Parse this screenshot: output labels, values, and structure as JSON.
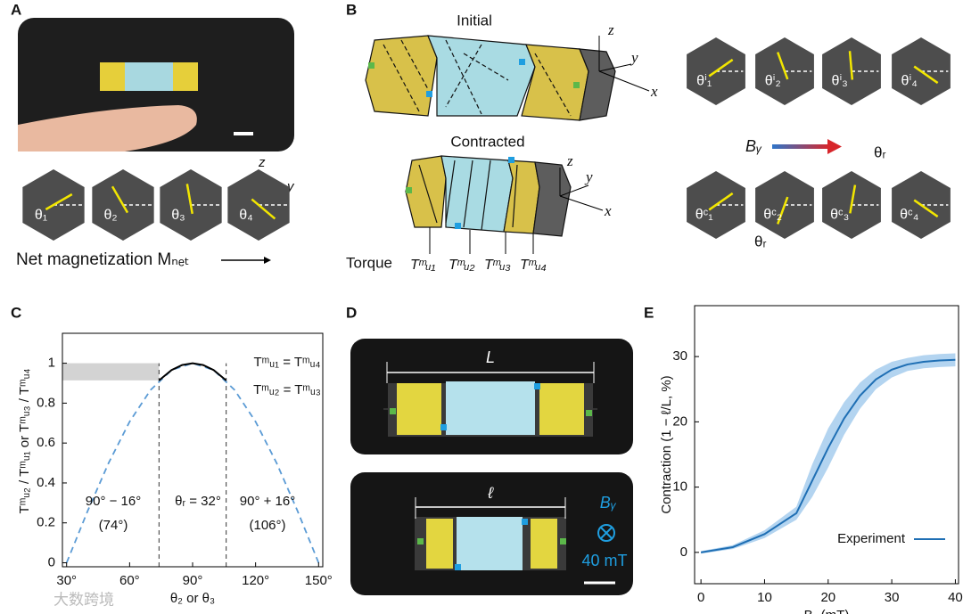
{
  "panel_labels": [
    "A",
    "B",
    "C",
    "D",
    "E"
  ],
  "panel_a": {
    "hexagon_labels": [
      "θ₁",
      "θ₂",
      "θ₃",
      "θ₄"
    ],
    "axis_labels": [
      "z",
      "y"
    ],
    "caption": "Net magnetization Mₙₑₜ"
  },
  "panel_b": {
    "initial_title": "Initial",
    "contracted_title": "Contracted",
    "axis_labels": [
      "z",
      "y",
      "x"
    ],
    "torque_label": "Torque",
    "torque_units": [
      "Tᵐᵤ₁",
      "Tᵐᵤ₂",
      "Tᵐᵤ₃",
      "Tᵐᵤ₄"
    ],
    "initial_angles": [
      "θⁱ₁",
      "θⁱ₂",
      "θⁱ₃",
      "θⁱ₄"
    ],
    "contracted_angles": [
      "θᶜ₁",
      "θᶜ₂",
      "θᶜ₃",
      "θᶜ₄"
    ],
    "field_label": "Bᵧ",
    "rotation_label": "θᵣ"
  },
  "panel_d": {
    "length_label": "L",
    "contracted_length_label": "ℓ",
    "field_label": "Bᵧ",
    "field_strength": "40 mT"
  },
  "watermark": "大数跨境",
  "chart_data": [
    {
      "type": "line",
      "xlabel": "θ₂ or θ₃",
      "ylabel": "Tᵐᵤ₂ / Tᵐᵤ₁ or Tᵐᵤ₃ / Tᵐᵤ₄",
      "xlim": [
        28,
        152
      ],
      "ylim": [
        -0.02,
        1.15
      ],
      "xticks": [
        {
          "value": 30,
          "label": "30°"
        },
        {
          "value": 60,
          "label": "60°"
        },
        {
          "value": 90,
          "label": "90°"
        },
        {
          "value": 120,
          "label": "120°"
        },
        {
          "value": 150,
          "label": "150°"
        }
      ],
      "yticks": [
        0,
        0.2,
        0.4,
        0.6,
        0.8,
        1
      ],
      "series": [
        {
          "color": "#5b9bd5",
          "line_style": "dashed",
          "x": [
            30,
            40,
            50,
            60,
            70,
            80,
            90,
            100,
            110,
            120,
            130,
            140,
            150
          ],
          "values": [
            0,
            0.259,
            0.5,
            0.707,
            0.866,
            0.966,
            1,
            0.966,
            0.866,
            0.707,
            0.5,
            0.259,
            0
          ]
        },
        {
          "color": "#000000",
          "line_style": "solid",
          "x": [
            74,
            80,
            85,
            90,
            95,
            100,
            106
          ],
          "values": [
            0.914,
            0.966,
            0.991,
            1,
            0.991,
            0.966,
            0.914
          ]
        }
      ],
      "shaded_region": {
        "x": [
          28,
          74
        ],
        "y": [
          0.914,
          1
        ],
        "color": "#d3d3d3"
      },
      "reference_lines_x": [
        74,
        106
      ],
      "annotations": [
        "Tᵐᵤ₁ = Tᵐᵤ₄",
        "Tᵐᵤ₂ = Tᵐᵤ₃",
        "90° − 16°",
        "(74°)",
        "θᵣ = 32°",
        "90° + 16°",
        "(106°)"
      ]
    },
    {
      "type": "line",
      "xlabel": "Bᵧ (mT)",
      "ylabel": "Contraction  (1 − ℓ/L, %)",
      "xlim": [
        -1,
        40.5
      ],
      "ylim": [
        -4.8,
        37.8
      ],
      "xticks": [
        0,
        10,
        20,
        30,
        40
      ],
      "yticks": [
        0,
        10,
        20,
        30
      ],
      "legend": "lower right",
      "series": [
        {
          "name": "Experiment",
          "color": "#1f6fb4",
          "band_color": "#b3d4f0",
          "x": [
            0,
            5,
            10,
            15,
            17.5,
            20,
            22.5,
            25,
            27.5,
            30,
            32.5,
            35,
            37.5,
            40
          ],
          "values": [
            0,
            0.8,
            2.8,
            6,
            11,
            16,
            20.5,
            24,
            26.5,
            28,
            28.8,
            29.2,
            29.4,
            29.5
          ],
          "error": [
            0.2,
            0.3,
            0.6,
            1,
            2.5,
            3,
            2.5,
            2,
            1.5,
            1.2,
            1,
            1,
            1,
            1
          ]
        }
      ]
    }
  ]
}
